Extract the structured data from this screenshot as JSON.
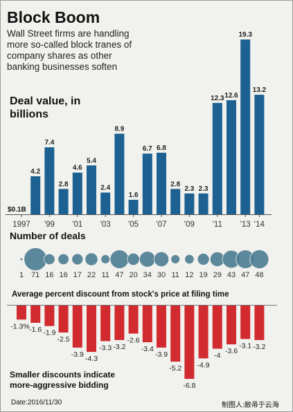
{
  "title": "Block Boom",
  "subtitle": "Wall Street firms are handling more so-called block tranes of company shares as other banking businesses soften",
  "deal_value_label": "Deal value, in billions",
  "deals_heading": "Number of deals",
  "discount_heading": "Average percent discount  from stock's price at filing time",
  "note": "Smaller discounts  indicate more-aggressive bidding",
  "date_text": "Date:2016/11/30",
  "credit_text": "制图人:敝帚于云海",
  "colors": {
    "bar_blue": "#1c6191",
    "bubble": "#4f7f94",
    "bar_red": "#d12a2f",
    "background": "#f1f1ee"
  },
  "chart_data": [
    {
      "type": "bar",
      "title": "Deal value, in billions",
      "categories": [
        "1997",
        "1998",
        "1999",
        "2000",
        "2001",
        "2002",
        "2003",
        "2004",
        "2005",
        "2006",
        "2007",
        "2008",
        "2009",
        "2010",
        "2011",
        "2012",
        "2013",
        "2014"
      ],
      "values": [
        0.1,
        4.2,
        7.4,
        2.8,
        4.6,
        5.4,
        2.4,
        8.9,
        1.6,
        6.7,
        6.8,
        2.8,
        2.3,
        2.3,
        12.3,
        12.6,
        19.3,
        13.2
      ],
      "value_labels": [
        "$0.1B",
        "4.2",
        "7.4",
        "2.8",
        "4.6",
        "5.4",
        "2.4",
        "8.9",
        "1.6",
        "6.7",
        "6.8",
        "2.8",
        "2.3",
        "2.3",
        "12.3",
        "12.6",
        "19.3",
        "13.2"
      ],
      "tick_labels": [
        "1997",
        "",
        "'99",
        "",
        "'01",
        "",
        "'03",
        "",
        "'05",
        "",
        "'07",
        "",
        "'09",
        "",
        "'11",
        "",
        "'13",
        "'14"
      ],
      "ylim": [
        0,
        20
      ]
    },
    {
      "type": "scatter",
      "title": "Number of deals",
      "categories": [
        "1997",
        "1998",
        "1999",
        "2000",
        "2001",
        "2002",
        "2003",
        "2004",
        "2005",
        "2006",
        "2007",
        "2008",
        "2009",
        "2010",
        "2011",
        "2012",
        "2013",
        "2014"
      ],
      "values": [
        1,
        71,
        16,
        16,
        17,
        22,
        11,
        47,
        20,
        34,
        30,
        11,
        12,
        19,
        29,
        43,
        47,
        48
      ]
    },
    {
      "type": "bar",
      "title": "Average percent discount  from stock's price at filing time",
      "categories": [
        "1997",
        "1998",
        "1999",
        "2000",
        "2001",
        "2002",
        "2003",
        "2004",
        "2005",
        "2006",
        "2007",
        "2008",
        "2009",
        "2010",
        "2011",
        "2012",
        "2013",
        "2014"
      ],
      "values": [
        -1.3,
        -1.6,
        -1.9,
        -2.5,
        -3.9,
        -4.3,
        -3.3,
        -3.2,
        -2.6,
        -3.4,
        -3.9,
        -5.2,
        -6.8,
        -4.9,
        -4,
        -3.6,
        -3.1,
        -3.2
      ],
      "value_labels": [
        "-1.3%",
        "-1.6",
        "-1.9",
        "-2.5",
        "-3.9",
        "-4.3",
        "-3.3",
        "-3.2",
        "-2.6",
        "-3.4",
        "-3.9",
        "-5.2",
        "-6.8",
        "-4.9",
        "-4",
        "-3.6",
        "-3.1",
        "-3.2"
      ],
      "ylim": [
        -7,
        0
      ]
    }
  ]
}
